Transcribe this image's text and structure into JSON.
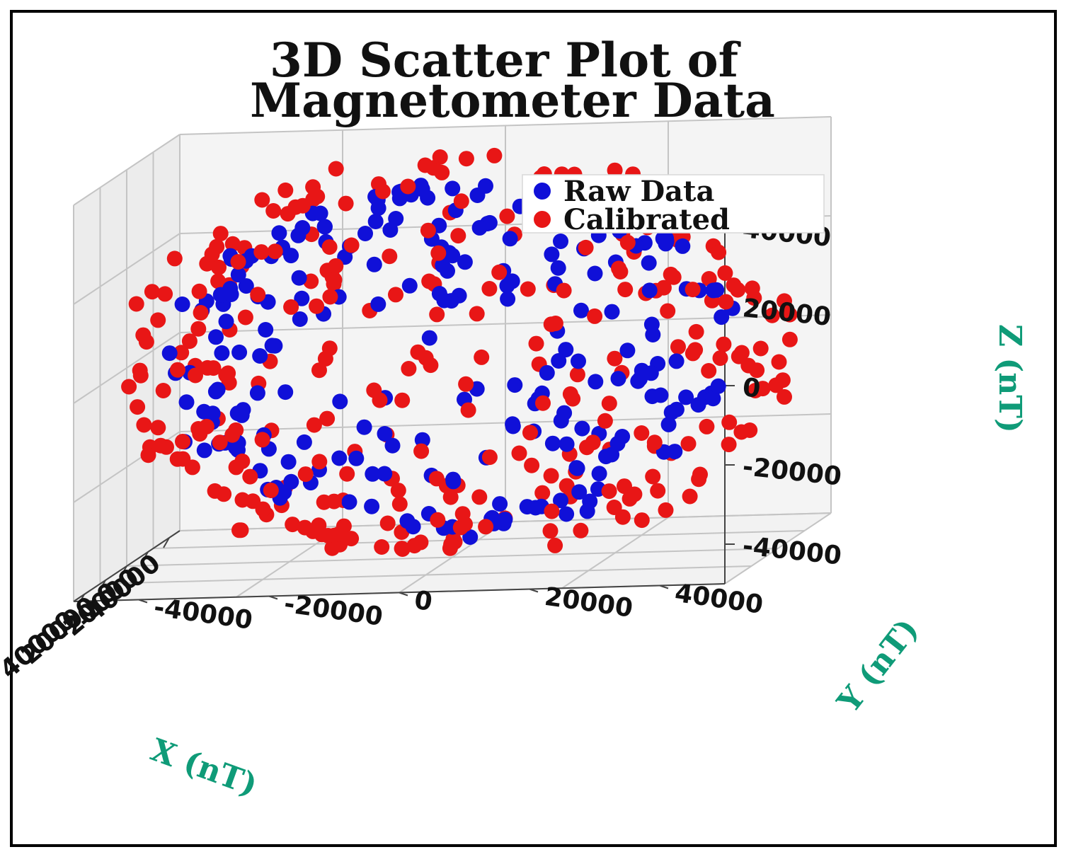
{
  "chart_data": {
    "type": "scatter",
    "projection": "3d",
    "title_lines": [
      "3D Scatter Plot of",
      "Magnetometer Data"
    ],
    "xlabel": "X (nT)",
    "ylabel": "Y (nT)",
    "zlabel": "Z (nT)",
    "x_ticks": [
      "-40000",
      "-20000",
      "0",
      "20000",
      "40000"
    ],
    "y_ticks": [
      "-40000",
      "-20000",
      "0",
      "20000",
      "40000"
    ],
    "z_ticks": [
      "-40000",
      "-20000",
      "0",
      "20000",
      "40000"
    ],
    "xlim": [
      -50000,
      50000
    ],
    "ylim": [
      -50000,
      50000
    ],
    "zlim": [
      -50000,
      50000
    ],
    "grid": true,
    "legend_position": "top-right",
    "series": [
      {
        "name": "Raw Data",
        "color": "#1010d8",
        "shape": "sphere",
        "radius_nT": 43000,
        "point_count": 240
      },
      {
        "name": "Calibrated",
        "color": "#e81616",
        "shape": "sphere",
        "radius_nT": 50000,
        "point_count": 320
      }
    ]
  }
}
